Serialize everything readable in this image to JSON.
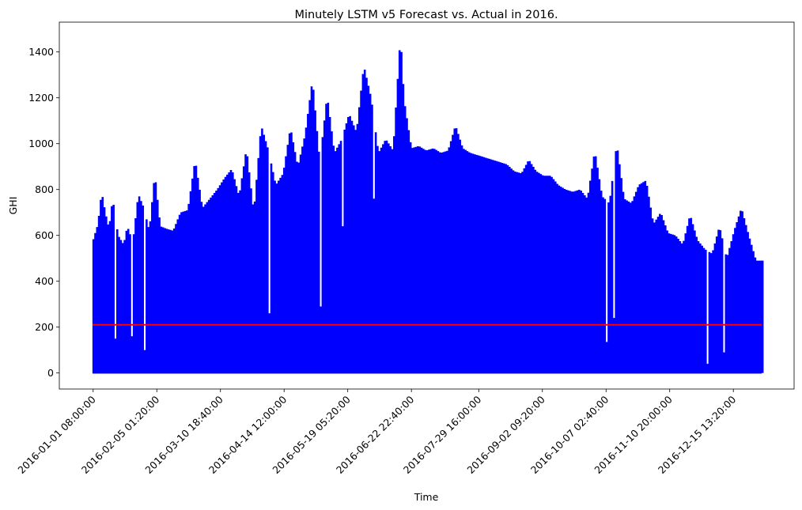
{
  "chart_data": {
    "type": "line",
    "title": "Minutely LSTM v5 Forecast vs. Actual in 2016.",
    "xlabel": "Time",
    "ylabel": "GHI",
    "ylim": [
      -70,
      1530
    ],
    "y_ticks": [
      0,
      200,
      400,
      600,
      800,
      1000,
      1200,
      1400
    ],
    "x_ticks": [
      "2016-01-01 08:00:00",
      "2016-02-05 01:20:00",
      "2016-03-10 18:40:00",
      "2016-04-14 12:00:00",
      "2016-05-19 05:20:00",
      "2016-06-22 22:40:00",
      "2016-07-29 16:00:00",
      "2016-09-02 09:20:00",
      "2016-10-07 02:40:00",
      "2016-11-10 20:00:00",
      "2016-12-15 13:20:00"
    ],
    "x_range": [
      "2016-01-01",
      "2016-12-31"
    ],
    "grid": false,
    "series": [
      {
        "key": "actual",
        "color": "#0000ff",
        "daily_peaks": {
          "dates": [
            "2016-01-01",
            "2016-01-04",
            "2016-01-06",
            "2016-01-08",
            "2016-01-10",
            "2016-01-12",
            "2016-01-15",
            "2016-01-18",
            "2016-01-20",
            "2016-01-23",
            "2016-01-26",
            "2016-01-29",
            "2016-02-01",
            "2016-02-04",
            "2016-02-07",
            "2016-02-10",
            "2016-02-14",
            "2016-02-18",
            "2016-02-22",
            "2016-02-26",
            "2016-03-01",
            "2016-03-05",
            "2016-03-09",
            "2016-03-13",
            "2016-03-17",
            "2016-03-21",
            "2016-03-25",
            "2016-03-29",
            "2016-04-02",
            "2016-04-06",
            "2016-04-10",
            "2016-04-14",
            "2016-04-18",
            "2016-04-22",
            "2016-04-26",
            "2016-04-30",
            "2016-05-04",
            "2016-05-08",
            "2016-05-12",
            "2016-05-16",
            "2016-05-20",
            "2016-05-24",
            "2016-05-28",
            "2016-06-01",
            "2016-06-05",
            "2016-06-09",
            "2016-06-13",
            "2016-06-17",
            "2016-06-19",
            "2016-06-23",
            "2016-06-27",
            "2016-07-01",
            "2016-07-05",
            "2016-07-09",
            "2016-07-13",
            "2016-07-17",
            "2016-07-21",
            "2016-07-25",
            "2016-07-29",
            "2016-08-02",
            "2016-08-06",
            "2016-08-10",
            "2016-08-14",
            "2016-08-18",
            "2016-08-22",
            "2016-08-26",
            "2016-08-30",
            "2016-09-03",
            "2016-09-07",
            "2016-09-11",
            "2016-09-15",
            "2016-09-19",
            "2016-09-23",
            "2016-09-27",
            "2016-10-01",
            "2016-10-05",
            "2016-10-09",
            "2016-10-13",
            "2016-10-17",
            "2016-10-21",
            "2016-10-25",
            "2016-10-29",
            "2016-11-02",
            "2016-11-06",
            "2016-11-10",
            "2016-11-14",
            "2016-11-18",
            "2016-11-22",
            "2016-11-26",
            "2016-11-30",
            "2016-12-04",
            "2016-12-08",
            "2016-12-12",
            "2016-12-16",
            "2016-12-20",
            "2016-12-24",
            "2016-12-28",
            "2016-12-31"
          ],
          "values": [
            570,
            650,
            790,
            700,
            630,
            760,
            600,
            560,
            640,
            570,
            780,
            720,
            620,
            870,
            640,
            630,
            620,
            700,
            710,
            930,
            720,
            760,
            800,
            850,
            890,
            770,
            980,
            700,
            1080,
            970,
            820,
            870,
            1070,
            900,
            1040,
            1280,
            920,
            1210,
            960,
            1020,
            1130,
            1050,
            1340,
            1200,
            960,
            1020,
            970,
            1470,
            1190,
            980,
            990,
            970,
            980,
            960,
            970,
            1080,
            980,
            960,
            950,
            940,
            930,
            920,
            910,
            880,
            870,
            930,
            880,
            860,
            860,
            820,
            800,
            790,
            800,
            760,
            970,
            770,
            740,
            1000,
            760,
            740,
            820,
            840,
            650,
            700,
            610,
            600,
            560,
            690,
            580,
            540,
            520,
            640,
            500,
            620,
            720,
            600,
            490,
            490
          ]
        },
        "dips": {
          "dates": [
            "2016-01-13",
            "2016-01-22",
            "2016-01-29",
            "2016-04-06",
            "2016-05-04",
            "2016-05-16",
            "2016-06-02",
            "2016-10-07",
            "2016-10-11",
            "2016-12-01",
            "2016-12-10"
          ],
          "values": [
            150,
            160,
            100,
            260,
            290,
            640,
            760,
            135,
            240,
            40,
            90
          ]
        }
      },
      {
        "key": "forecast",
        "color": "#ff0000",
        "constant_value": 210
      }
    ]
  }
}
